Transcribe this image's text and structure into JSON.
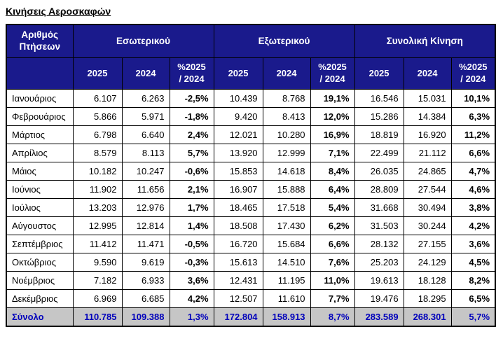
{
  "page": {
    "title": "Κινήσεις Αεροσκαφών"
  },
  "colors": {
    "header_bg": "#1a1a8c",
    "header_text": "#ffffff",
    "total_bg": "#c6c6c6",
    "total_text": "#0000bb",
    "border": "#000000"
  },
  "table": {
    "corner_header": "Αριθμός\nΠτήσεων",
    "groups": [
      {
        "label": "Εσωτερικού"
      },
      {
        "label": "Εξωτερικού"
      },
      {
        "label": "Συνολική Κίνηση"
      }
    ],
    "sub_headers": [
      "2025",
      "2024",
      "%2025\n/ 2024"
    ],
    "rows": [
      {
        "month": "Ιανουάριος",
        "cells": [
          "6.107",
          "6.263",
          "-2,5%",
          "10.439",
          "8.768",
          "19,1%",
          "16.546",
          "15.031",
          "10,1%"
        ]
      },
      {
        "month": "Φεβρουάριος",
        "cells": [
          "5.866",
          "5.971",
          "-1,8%",
          "9.420",
          "8.413",
          "12,0%",
          "15.286",
          "14.384",
          "6,3%"
        ]
      },
      {
        "month": "Μάρτιος",
        "cells": [
          "6.798",
          "6.640",
          "2,4%",
          "12.021",
          "10.280",
          "16,9%",
          "18.819",
          "16.920",
          "11,2%"
        ]
      },
      {
        "month": "Απρίλιος",
        "cells": [
          "8.579",
          "8.113",
          "5,7%",
          "13.920",
          "12.999",
          "7,1%",
          "22.499",
          "21.112",
          "6,6%"
        ]
      },
      {
        "month": "Μάιος",
        "cells": [
          "10.182",
          "10.247",
          "-0,6%",
          "15.853",
          "14.618",
          "8,4%",
          "26.035",
          "24.865",
          "4,7%"
        ]
      },
      {
        "month": "Ιούνιος",
        "cells": [
          "11.902",
          "11.656",
          "2,1%",
          "16.907",
          "15.888",
          "6,4%",
          "28.809",
          "27.544",
          "4,6%"
        ]
      },
      {
        "month": "Ιούλιος",
        "cells": [
          "13.203",
          "12.976",
          "1,7%",
          "18.465",
          "17.518",
          "5,4%",
          "31.668",
          "30.494",
          "3,8%"
        ]
      },
      {
        "month": "Αύγουστος",
        "cells": [
          "12.995",
          "12.814",
          "1,4%",
          "18.508",
          "17.430",
          "6,2%",
          "31.503",
          "30.244",
          "4,2%"
        ]
      },
      {
        "month": "Σεπτέμβριος",
        "cells": [
          "11.412",
          "11.471",
          "-0,5%",
          "16.720",
          "15.684",
          "6,6%",
          "28.132",
          "27.155",
          "3,6%"
        ]
      },
      {
        "month": "Οκτώβριος",
        "cells": [
          "9.590",
          "9.619",
          "-0,3%",
          "15.613",
          "14.510",
          "7,6%",
          "25.203",
          "24.129",
          "4,5%"
        ]
      },
      {
        "month": "Νοέμβριος",
        "cells": [
          "7.182",
          "6.933",
          "3,6%",
          "12.431",
          "11.195",
          "11,0%",
          "19.613",
          "18.128",
          "8,2%"
        ]
      },
      {
        "month": "Δεκέμβριος",
        "cells": [
          "6.969",
          "6.685",
          "4,2%",
          "12.507",
          "11.610",
          "7,7%",
          "19.476",
          "18.295",
          "6,5%"
        ]
      }
    ],
    "total": {
      "label": "Σύνολο",
      "cells": [
        "110.785",
        "109.388",
        "1,3%",
        "172.804",
        "158.913",
        "8,7%",
        "283.589",
        "268.301",
        "5,7%"
      ]
    }
  }
}
